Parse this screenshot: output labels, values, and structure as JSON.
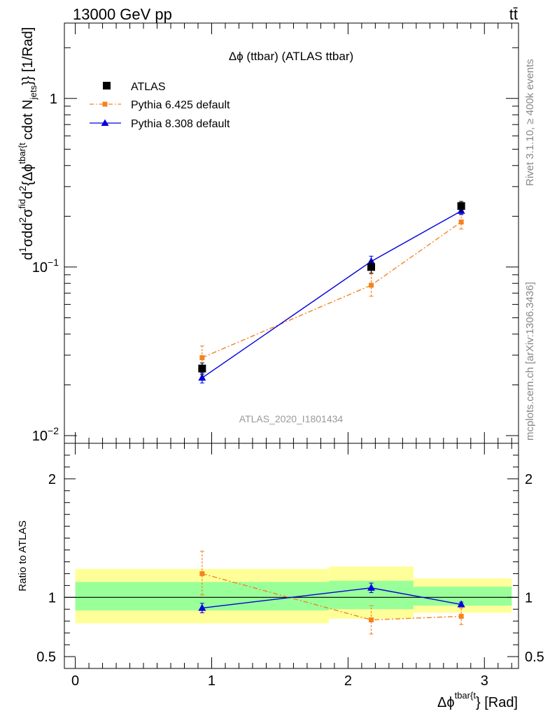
{
  "header": {
    "left": "13000 GeV pp",
    "right": "tt̄"
  },
  "side_text": {
    "rivet": "Rivet 3.1.10, ≥ 400k events",
    "mcplots": "mcplots.cern.ch [arXiv:1306.3436]"
  },
  "chart_data": [
    {
      "type": "line",
      "title": "Δϕ (ttbar) (ATLAS ttbar)",
      "watermark": "ATLAS_2020_I1801434",
      "ylabel": "d1σdd²σᶠⁱᵈd²{Δϕᵗᵇᵃʳᶠᵗ cdot Nⱼₑₜₛ}} [1/Rad]",
      "ylabel_parts": [
        "d",
        "1",
        "σ",
        "d",
        "d",
        "2",
        "σ",
        "fid",
        "d",
        "2",
        "{Δϕ",
        "tbar{t",
        "cdot N",
        "jets",
        "}} [1/Rad]"
      ],
      "yscale": "log",
      "ylim": [
        0.009,
        2.8
      ],
      "xlim": [
        -0.08,
        3.25
      ],
      "ytick_labels": [
        {
          "value": 1,
          "label": "1"
        },
        {
          "value": 0.1,
          "label": "10",
          "exp": "−1"
        },
        {
          "value": 0.01,
          "label": "10",
          "exp": "−2"
        }
      ],
      "legend_position": "top-left",
      "series": [
        {
          "name": "ATLAS",
          "marker": "square",
          "color": "#000000",
          "line": "none",
          "x": [
            0.93,
            2.17,
            2.83
          ],
          "y": [
            0.025,
            0.1,
            0.23
          ],
          "yerr_low": [
            0.023,
            0.092,
            0.215
          ],
          "yerr_high": [
            0.027,
            0.108,
            0.245
          ]
        },
        {
          "name": "Pythia 6.425 default",
          "marker": "square-small",
          "color": "#f58220",
          "line": "dashdot",
          "x": [
            0.93,
            2.17,
            2.83
          ],
          "y": [
            0.029,
            0.078,
            0.185
          ],
          "yerr_low": [
            0.025,
            0.067,
            0.168
          ],
          "yerr_high": [
            0.034,
            0.091,
            0.204
          ]
        },
        {
          "name": "Pythia 8.308 default",
          "marker": "triangle",
          "color": "#0000dd",
          "line": "solid",
          "x": [
            0.93,
            2.17,
            2.83
          ],
          "y": [
            0.022,
            0.108,
            0.215
          ],
          "yerr_low": [
            0.0205,
            0.1,
            0.205
          ],
          "yerr_high": [
            0.0235,
            0.116,
            0.225
          ]
        }
      ]
    },
    {
      "type": "line",
      "ylabel": "Ratio to ATLAS",
      "xlabel_parts": [
        "Δϕ",
        "tbar{t",
        "} [Rad]"
      ],
      "xlim": [
        -0.08,
        3.25
      ],
      "ylim": [
        0.4,
        2.3
      ],
      "xtick_labels": [
        {
          "value": 0,
          "label": "0"
        },
        {
          "value": 1,
          "label": "1"
        },
        {
          "value": 2,
          "label": "2"
        },
        {
          "value": 3,
          "label": "3"
        }
      ],
      "ytick_labels": [
        {
          "value": 0.5,
          "label": "0.5"
        },
        {
          "value": 1,
          "label": "1"
        },
        {
          "value": 2,
          "label": "2"
        }
      ],
      "bands": [
        {
          "x0": 0.0,
          "x1": 1.86,
          "stat": [
            0.89,
            1.13
          ],
          "total": [
            0.78,
            1.24
          ]
        },
        {
          "x0": 1.86,
          "x1": 2.48,
          "stat": [
            0.9,
            1.14
          ],
          "total": [
            0.82,
            1.26
          ]
        },
        {
          "x0": 2.48,
          "x1": 3.2,
          "stat": [
            0.93,
            1.09
          ],
          "total": [
            0.87,
            1.16
          ]
        }
      ],
      "series": [
        {
          "name": "Pythia 6.425 default",
          "marker": "square-small",
          "color": "#f58220",
          "line": "dashdot",
          "x": [
            0.93,
            2.17,
            2.83
          ],
          "y": [
            1.2,
            0.81,
            0.84
          ],
          "yerr_low": [
            1.02,
            0.69,
            0.77
          ],
          "yerr_high": [
            1.39,
            0.93,
            0.91
          ]
        },
        {
          "name": "Pythia 8.308 default",
          "marker": "triangle",
          "color": "#0000dd",
          "line": "solid",
          "x": [
            0.93,
            2.17,
            2.83
          ],
          "y": [
            0.91,
            1.08,
            0.94
          ],
          "yerr_low": [
            0.87,
            1.04,
            0.92
          ],
          "yerr_high": [
            0.95,
            1.12,
            0.96
          ]
        }
      ]
    }
  ]
}
